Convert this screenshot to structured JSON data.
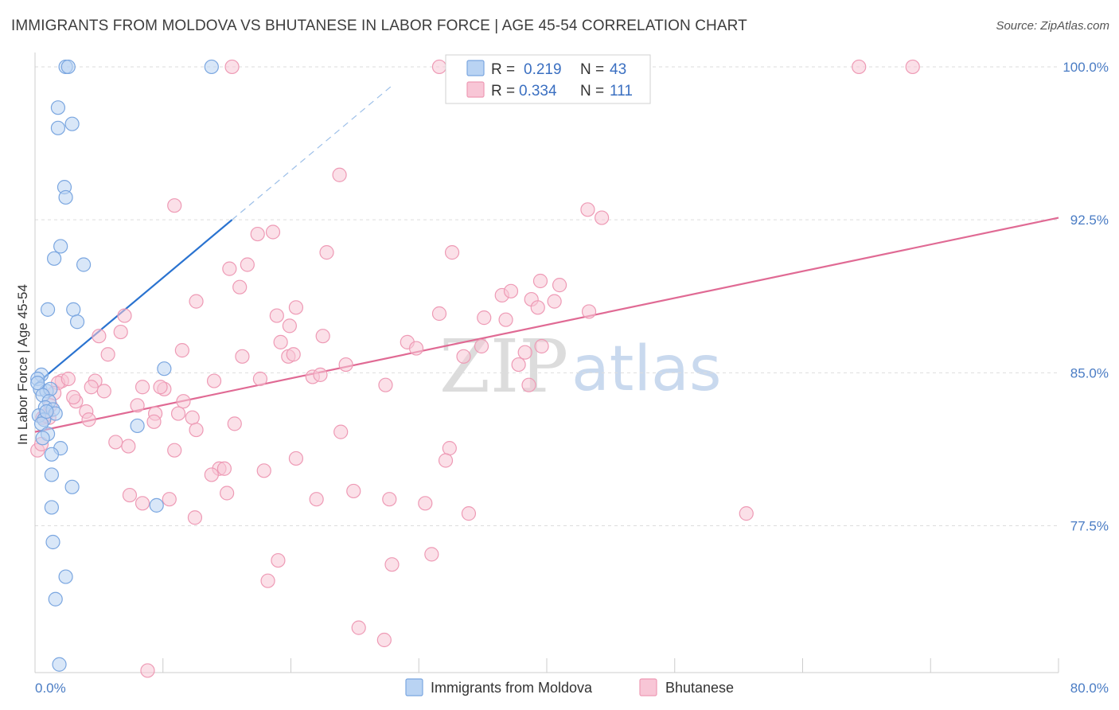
{
  "title": "IMMIGRANTS FROM MOLDOVA VS BHUTANESE IN LABOR FORCE | AGE 45-54 CORRELATION CHART",
  "source": "Source: ZipAtlas.com",
  "watermark": {
    "zip": "ZIP",
    "atlas": "atlas"
  },
  "colors": {
    "moldova_fill": "#b9d3f3",
    "moldova_stroke": "#7aa6e0",
    "moldova_line": "#2a73d0",
    "bhutanese_fill": "#f8c6d6",
    "bhutanese_stroke": "#ee9ab5",
    "bhutanese_line": "#e06a94",
    "tick_label": "#4a7cc4",
    "grid": "#dddddd"
  },
  "legend": {
    "rows": [
      {
        "series": "moldova",
        "r_label": "R =",
        "r_value": "0.219",
        "n_label": "N =",
        "n_value": "43"
      },
      {
        "series": "bhutanese",
        "r_label": "R =",
        "r_value": "0.334",
        "n_label": "N =",
        "n_value": "111"
      }
    ]
  },
  "chart_data": {
    "type": "scatter",
    "title": "IMMIGRANTS FROM MOLDOVA VS BHUTANESE IN LABOR FORCE | AGE 45-54 CORRELATION CHART",
    "xlabel": "",
    "ylabel": "In Labor Force | Age 45-54",
    "xlim": [
      0,
      80
    ],
    "ylim": [
      70.3,
      100.7
    ],
    "x_tick_labels": [
      "0.0%",
      "80.0%"
    ],
    "y_ticks": [
      77.5,
      85.0,
      92.5,
      100.0
    ],
    "y_tick_labels": [
      "77.5%",
      "85.0%",
      "92.5%",
      "100.0%"
    ],
    "grid": true,
    "legend_position": "top-center",
    "series": [
      {
        "name": "Immigrants from Moldova",
        "key": "moldova",
        "R": 0.219,
        "N": 43,
        "trend": {
          "x0": 0.0,
          "y0": 84.4,
          "x1": 15.4,
          "y1": 92.5,
          "dashed_to_x": 28.0
        },
        "points": [
          [
            2.4,
            100.0
          ],
          [
            2.6,
            100.0
          ],
          [
            13.8,
            100.0
          ],
          [
            1.8,
            98.0
          ],
          [
            1.8,
            97.0
          ],
          [
            2.9,
            97.2
          ],
          [
            2.3,
            94.1
          ],
          [
            2.4,
            93.6
          ],
          [
            2.0,
            91.2
          ],
          [
            1.5,
            90.6
          ],
          [
            3.8,
            90.3
          ],
          [
            1.0,
            88.1
          ],
          [
            3.0,
            88.1
          ],
          [
            3.3,
            87.5
          ],
          [
            0.5,
            84.9
          ],
          [
            0.2,
            84.7
          ],
          [
            0.4,
            84.2
          ],
          [
            0.9,
            84.1
          ],
          [
            1.2,
            84.2
          ],
          [
            0.6,
            83.9
          ],
          [
            1.1,
            83.6
          ],
          [
            0.8,
            83.3
          ],
          [
            1.4,
            83.2
          ],
          [
            1.6,
            83.0
          ],
          [
            0.3,
            82.9
          ],
          [
            0.7,
            82.7
          ],
          [
            0.5,
            82.5
          ],
          [
            1.0,
            82.0
          ],
          [
            0.6,
            81.8
          ],
          [
            10.1,
            85.2
          ],
          [
            8.0,
            82.4
          ],
          [
            2.0,
            81.3
          ],
          [
            1.3,
            81.0
          ],
          [
            1.3,
            80.0
          ],
          [
            2.9,
            79.4
          ],
          [
            1.3,
            78.4
          ],
          [
            9.5,
            78.5
          ],
          [
            1.4,
            76.7
          ],
          [
            2.4,
            75.0
          ],
          [
            1.6,
            73.9
          ],
          [
            1.9,
            70.7
          ],
          [
            0.2,
            84.5
          ],
          [
            0.9,
            83.1
          ]
        ]
      },
      {
        "name": "Bhutanese",
        "key": "bhutanese",
        "R": 0.334,
        "N": 111,
        "trend": {
          "x0": 0.0,
          "y0": 82.1,
          "x1": 80.0,
          "y1": 92.6
        },
        "points": [
          [
            15.4,
            100.0
          ],
          [
            31.6,
            100.0
          ],
          [
            64.4,
            100.0
          ],
          [
            68.6,
            100.0
          ],
          [
            23.8,
            94.7
          ],
          [
            10.9,
            93.2
          ],
          [
            44.3,
            92.6
          ],
          [
            43.2,
            93.0
          ],
          [
            18.6,
            91.9
          ],
          [
            17.4,
            91.8
          ],
          [
            22.8,
            90.9
          ],
          [
            32.6,
            90.9
          ],
          [
            15.2,
            90.1
          ],
          [
            16.6,
            90.3
          ],
          [
            16.0,
            89.2
          ],
          [
            12.6,
            88.5
          ],
          [
            20.4,
            88.2
          ],
          [
            36.5,
            88.8
          ],
          [
            39.5,
            89.5
          ],
          [
            37.2,
            89.0
          ],
          [
            38.8,
            88.6
          ],
          [
            40.6,
            88.5
          ],
          [
            41.0,
            89.3
          ],
          [
            39.3,
            88.2
          ],
          [
            7.0,
            87.8
          ],
          [
            18.9,
            87.8
          ],
          [
            19.9,
            87.3
          ],
          [
            31.6,
            87.9
          ],
          [
            35.1,
            87.7
          ],
          [
            36.8,
            87.6
          ],
          [
            43.3,
            88.0
          ],
          [
            6.7,
            87.0
          ],
          [
            22.5,
            86.8
          ],
          [
            5.0,
            86.8
          ],
          [
            19.2,
            86.5
          ],
          [
            29.1,
            86.5
          ],
          [
            29.8,
            86.2
          ],
          [
            34.9,
            86.3
          ],
          [
            38.3,
            86.0
          ],
          [
            39.6,
            86.3
          ],
          [
            11.5,
            86.1
          ],
          [
            5.7,
            85.9
          ],
          [
            16.2,
            85.8
          ],
          [
            19.8,
            85.8
          ],
          [
            20.2,
            85.9
          ],
          [
            24.3,
            85.4
          ],
          [
            33.5,
            85.8
          ],
          [
            37.8,
            85.4
          ],
          [
            38.6,
            84.4
          ],
          [
            27.4,
            84.4
          ],
          [
            14.0,
            84.6
          ],
          [
            17.6,
            84.7
          ],
          [
            21.7,
            84.8
          ],
          [
            22.3,
            84.9
          ],
          [
            4.7,
            84.6
          ],
          [
            2.1,
            84.6
          ],
          [
            1.8,
            84.5
          ],
          [
            2.6,
            84.7
          ],
          [
            4.4,
            84.3
          ],
          [
            8.4,
            84.3
          ],
          [
            10.1,
            84.2
          ],
          [
            9.8,
            84.3
          ],
          [
            5.4,
            84.1
          ],
          [
            1.5,
            84.0
          ],
          [
            3.2,
            83.6
          ],
          [
            3.0,
            83.8
          ],
          [
            8.0,
            83.4
          ],
          [
            11.6,
            83.6
          ],
          [
            4.0,
            83.1
          ],
          [
            11.2,
            83.0
          ],
          [
            9.4,
            83.0
          ],
          [
            0.6,
            82.8
          ],
          [
            1.1,
            82.8
          ],
          [
            4.2,
            82.7
          ],
          [
            9.3,
            82.6
          ],
          [
            15.6,
            82.5
          ],
          [
            12.3,
            82.8
          ],
          [
            12.6,
            82.2
          ],
          [
            23.9,
            82.1
          ],
          [
            6.3,
            81.6
          ],
          [
            7.3,
            81.4
          ],
          [
            10.9,
            81.2
          ],
          [
            32.4,
            81.3
          ],
          [
            32.1,
            80.7
          ],
          [
            20.4,
            80.8
          ],
          [
            14.4,
            80.3
          ],
          [
            14.8,
            80.3
          ],
          [
            17.9,
            80.2
          ],
          [
            13.8,
            80.0
          ],
          [
            24.9,
            79.2
          ],
          [
            15.0,
            79.1
          ],
          [
            7.4,
            79.0
          ],
          [
            10.5,
            78.8
          ],
          [
            8.4,
            78.6
          ],
          [
            22.0,
            78.8
          ],
          [
            30.5,
            78.6
          ],
          [
            27.7,
            78.8
          ],
          [
            55.6,
            78.1
          ],
          [
            33.9,
            78.1
          ],
          [
            12.5,
            77.9
          ],
          [
            31.0,
            76.1
          ],
          [
            19.0,
            75.8
          ],
          [
            27.9,
            75.6
          ],
          [
            18.2,
            74.8
          ],
          [
            25.3,
            72.5
          ],
          [
            27.3,
            71.9
          ],
          [
            8.8,
            70.4
          ],
          [
            0.2,
            81.2
          ],
          [
            0.5,
            81.5
          ],
          [
            0.8,
            82.9
          ],
          [
            1.2,
            83.4
          ]
        ]
      }
    ]
  },
  "bottom_legend": {
    "items": [
      {
        "series": "moldova",
        "label": "Immigrants from Moldova"
      },
      {
        "series": "bhutanese",
        "label": "Bhutanese"
      }
    ]
  }
}
